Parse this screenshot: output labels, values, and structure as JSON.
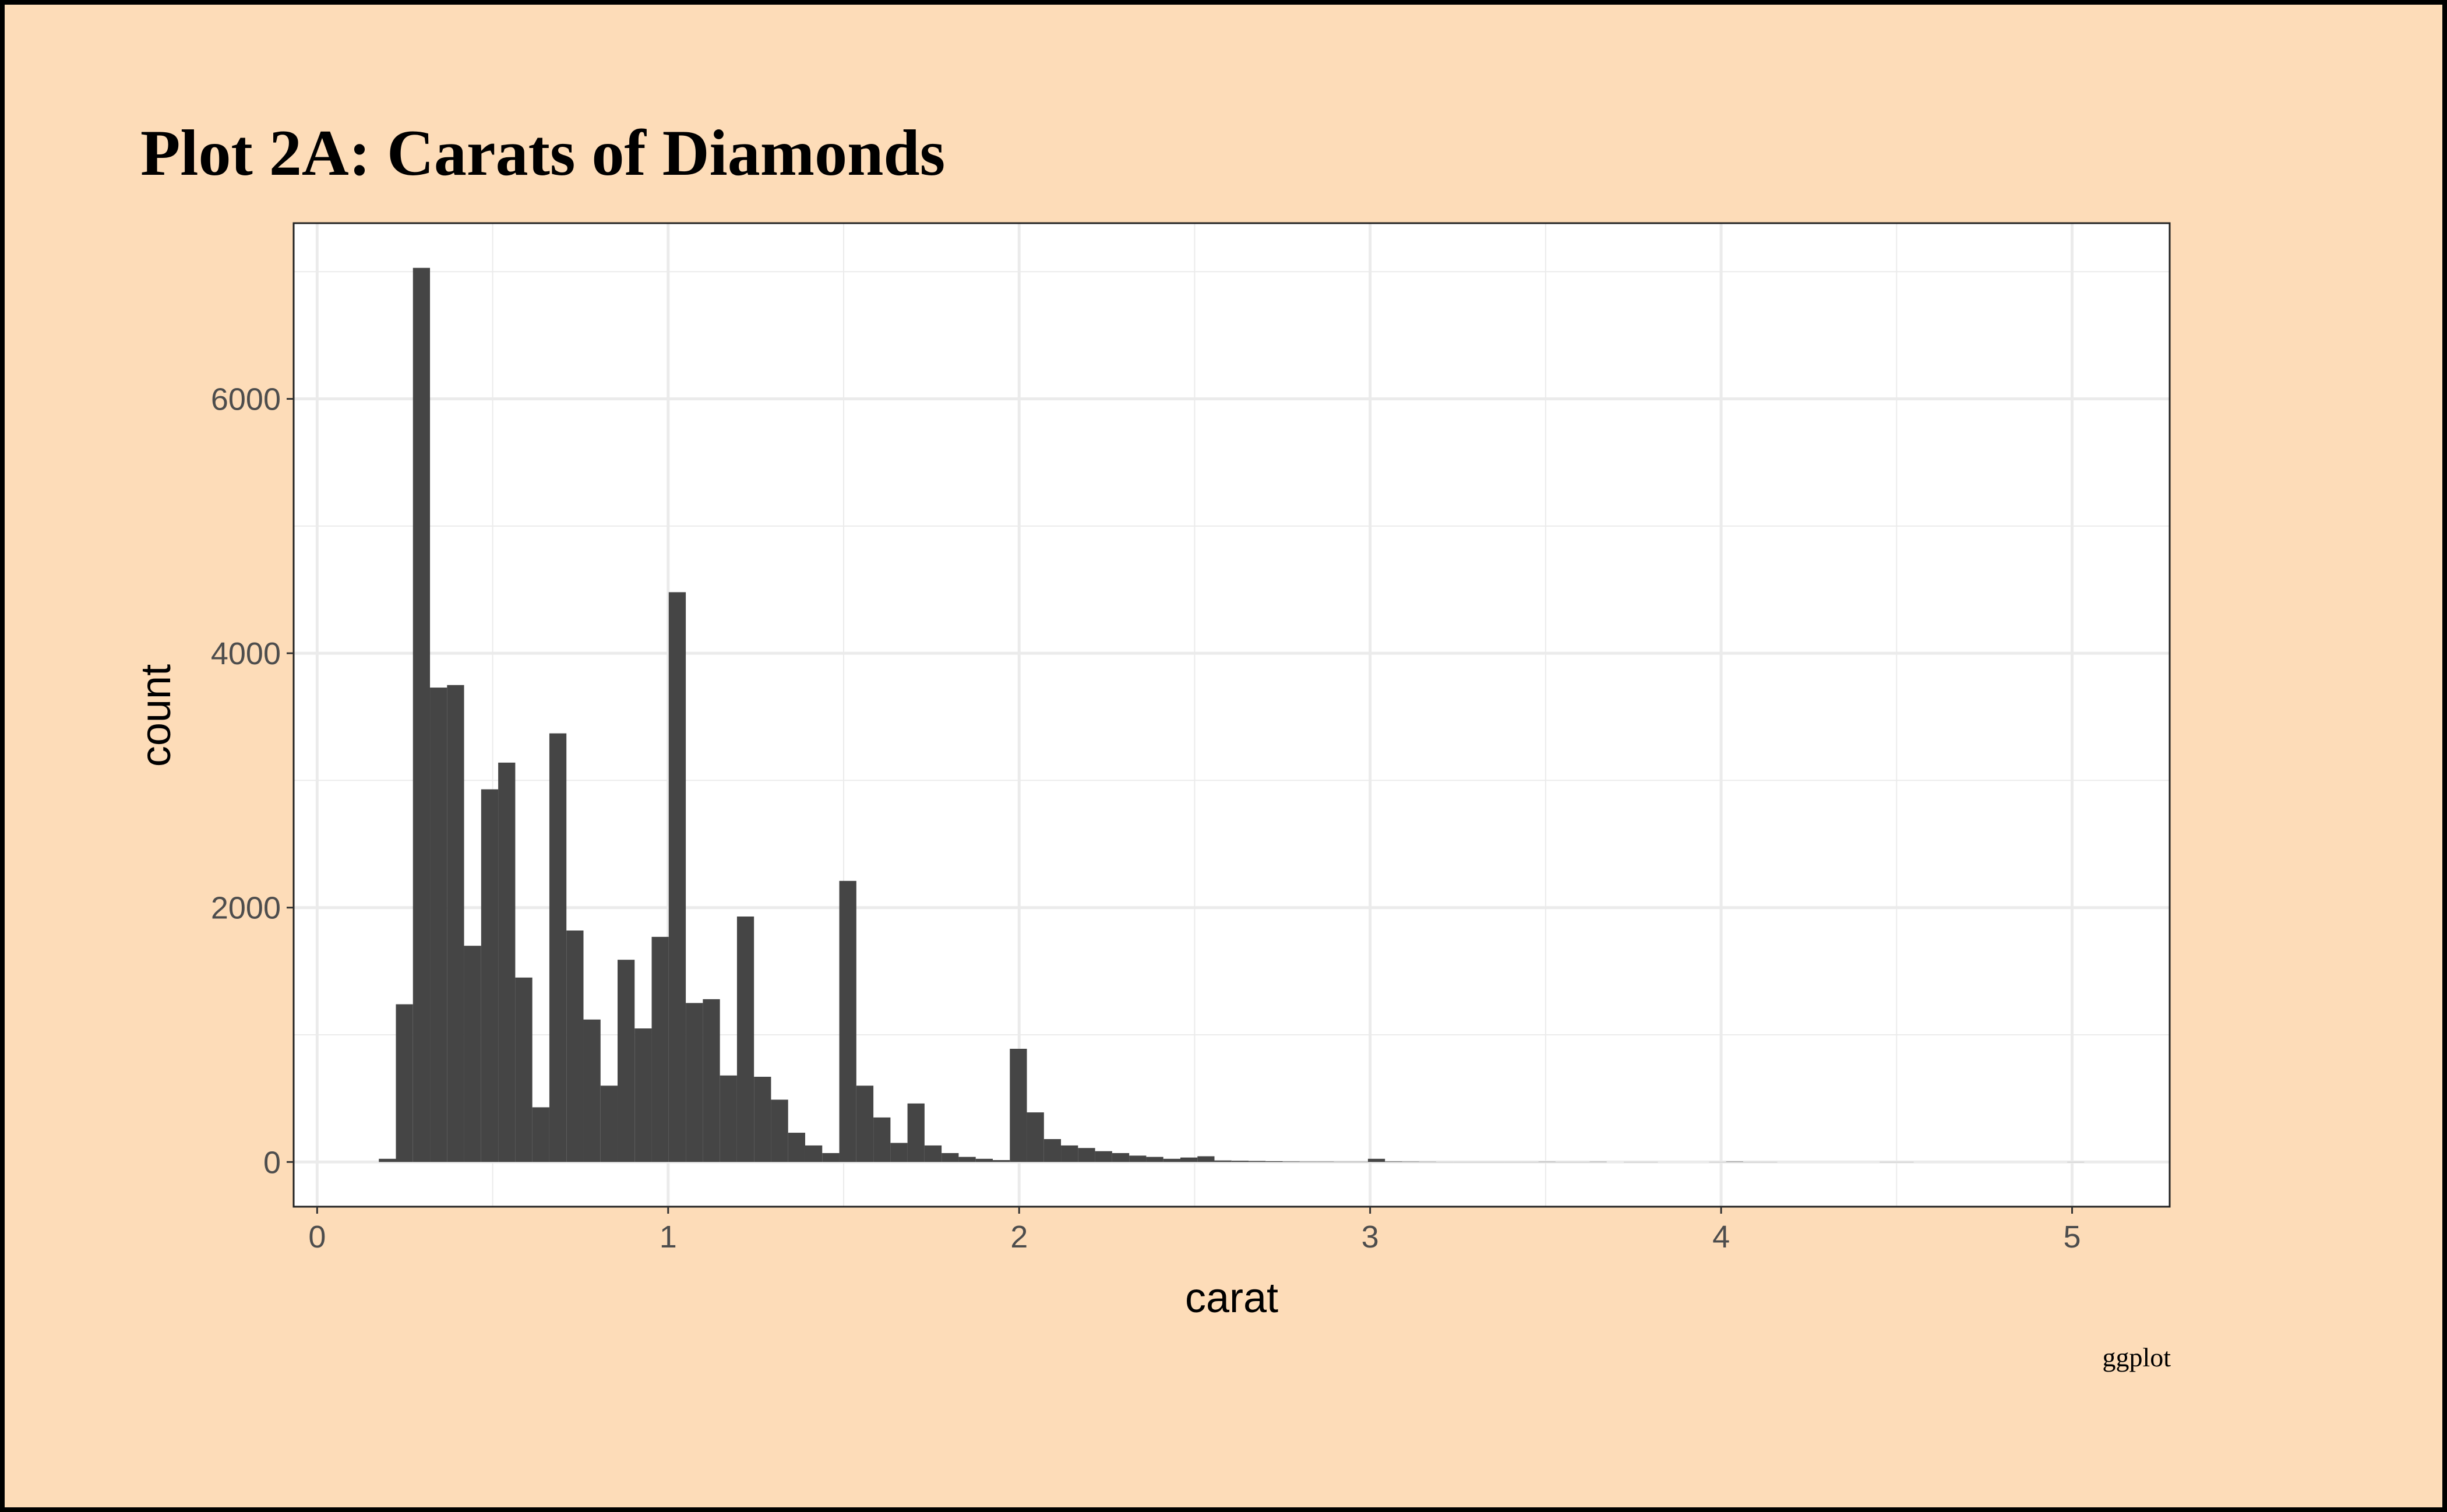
{
  "chart_data": {
    "type": "histogram",
    "title": "Plot 2A: Carats of Diamonds",
    "x_label": "carat",
    "y_label": "count",
    "caption": "ggplot",
    "color": "#454545",
    "bins": [
      0.1757,
      0.2243,
      0.2729,
      0.3215,
      0.3701,
      0.4186,
      0.4672,
      0.5158,
      0.5644,
      0.613,
      0.6616,
      0.7102,
      0.7588,
      0.8074,
      0.8559,
      0.9045,
      0.9531,
      1.0017,
      1.0503,
      1.0989,
      1.1475,
      1.1961,
      1.2446,
      1.2932,
      1.3418,
      1.3904,
      1.439,
      1.4876,
      1.5362,
      1.5848,
      1.6334,
      1.6819,
      1.7305,
      1.7791,
      1.8277,
      1.8763,
      1.9249,
      1.9735,
      2.0221,
      2.0707,
      2.1192,
      2.1678,
      2.2164,
      2.265,
      2.3136,
      2.3622,
      2.4108,
      2.4594,
      2.508,
      2.5565,
      2.6051,
      2.6537,
      2.7023,
      2.7509,
      2.7995,
      2.8481,
      2.8967,
      2.9452,
      2.9938,
      3.0424,
      3.091,
      3.1396,
      3.1882,
      3.2368,
      3.2854,
      3.334,
      3.3825,
      3.4311,
      3.4797,
      3.5283,
      3.5769,
      3.6255,
      3.6741,
      3.7227,
      3.7713,
      3.8198,
      3.8684,
      3.917,
      3.9656,
      4.0142,
      4.0628,
      4.1114,
      4.16,
      4.2086,
      4.2571,
      4.3057,
      4.3543,
      4.4029,
      4.4515,
      4.5001,
      4.5487,
      4.5973,
      4.6458,
      4.6944,
      4.743,
      4.7916,
      4.8402,
      4.8888,
      4.9374,
      4.986,
      5.0346
    ],
    "values": [
      25,
      1240,
      7030,
      3730,
      3750,
      1700,
      2930,
      3140,
      1450,
      430,
      3370,
      1820,
      1120,
      600,
      1590,
      1050,
      1770,
      4480,
      1250,
      1280,
      680,
      1930,
      670,
      490,
      230,
      130,
      70,
      2210,
      600,
      350,
      150,
      460,
      130,
      70,
      40,
      25,
      15,
      890,
      390,
      180,
      130,
      110,
      85,
      70,
      50,
      40,
      25,
      35,
      45,
      12,
      10,
      8,
      6,
      4,
      3,
      3,
      2,
      2,
      25,
      4,
      3,
      2,
      1,
      1,
      1,
      1,
      1,
      1,
      2,
      1,
      1,
      2,
      0,
      1,
      1,
      0,
      0,
      0,
      1,
      3,
      1,
      1,
      0,
      0,
      0,
      0,
      0,
      0,
      1,
      1,
      0,
      0,
      0,
      0,
      0,
      0,
      0,
      0,
      0,
      1
    ],
    "xlim": [
      -0.067,
      5.278
    ],
    "ylim": [
      -351.5,
      7381.5
    ],
    "xticks": [
      0,
      1,
      2,
      3,
      4,
      5
    ],
    "yticks": [
      0,
      2000,
      4000,
      6000
    ],
    "x_minor_grid": [
      0.5,
      1.5,
      2.5,
      3.5,
      4.5
    ],
    "y_minor_grid": [
      1000,
      3000,
      5000,
      7000
    ],
    "grid": true
  }
}
